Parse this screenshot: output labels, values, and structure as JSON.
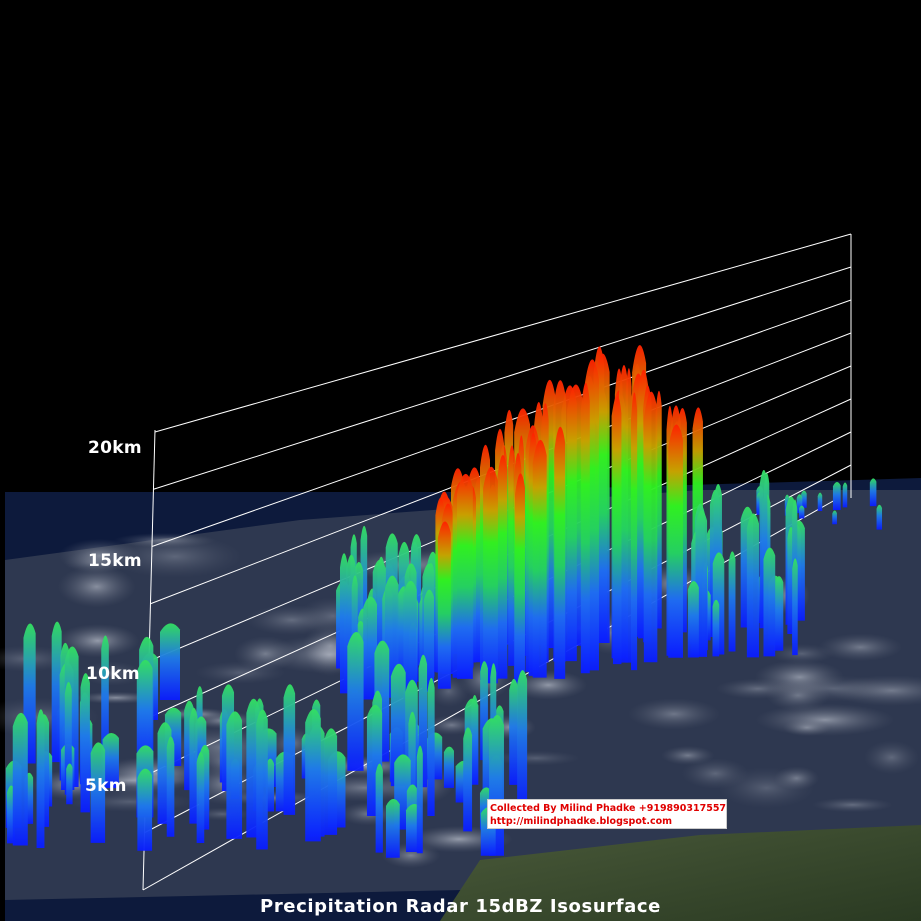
{
  "title": "Precipitation Radar 15dBZ Isosurface",
  "altitude_labels": [
    "20km",
    "15km",
    "10km",
    "5km"
  ],
  "credit": {
    "line1": "Collected By Milind Phadke +919890317557",
    "line2": "http://milindphadke.blogspot.com"
  },
  "colors": {
    "background": "#000000",
    "high_echo": "#ff2a00",
    "mid_echo": "#22e022",
    "low_echo": "#0a2cff",
    "ocean": "#0b1a3a",
    "grid": "#ffffff"
  }
}
